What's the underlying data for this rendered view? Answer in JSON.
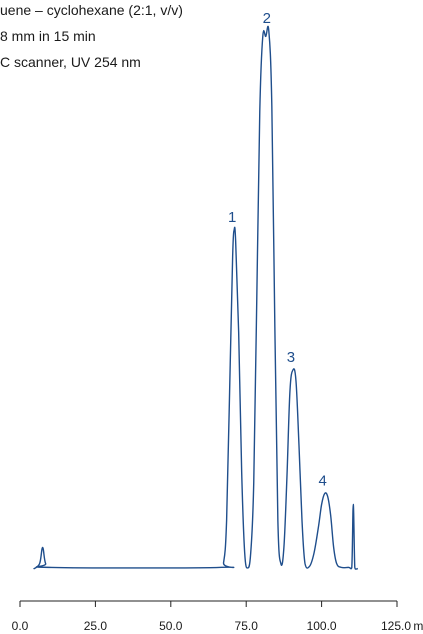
{
  "notes": [
    "uene – cyclohexane (2:1, v/v)",
    "8 mm in 15 min",
    "C scanner, UV 254 nm"
  ],
  "colors": {
    "trace": "#1f4e8c",
    "axis": "#222222",
    "text": "#1a1a1a"
  },
  "chart_data": {
    "type": "line",
    "title": "",
    "xlabel": "",
    "ylabel": "",
    "x_unit": "mm",
    "xlim": [
      0,
      125
    ],
    "x_ticks": [
      {
        "value": 0,
        "label": "0.0"
      },
      {
        "value": 25,
        "label": "25.0"
      },
      {
        "value": 50,
        "label": "50.0"
      },
      {
        "value": 75,
        "label": "75.0"
      },
      {
        "value": 100,
        "label": "100.0"
      },
      {
        "value": 125,
        "label": "125.0"
      }
    ],
    "peaks": [
      {
        "label": "1",
        "x": 71,
        "height": 0.63
      },
      {
        "label": "2",
        "x": 82.5,
        "height": 1.0
      },
      {
        "label": "3",
        "x": 90.5,
        "height": 0.37
      },
      {
        "label": "4",
        "x": 101,
        "height": 0.14
      }
    ],
    "series": [
      {
        "x": [
          4.5,
          6.5,
          7.5,
          8.5,
          10.5,
          66,
          67.5,
          68.5,
          69.5,
          70.5,
          71,
          71.5,
          72.5,
          73.5,
          74.5,
          75.5,
          76.5,
          77.5,
          78.5,
          79.5,
          80.5,
          81.5,
          82.5,
          83.5,
          84.5,
          85.5,
          86.5,
          87.5,
          88.5,
          89.5,
          90.5,
          91.5,
          92.5,
          93.5,
          94.5,
          96,
          97.5,
          99,
          100,
          101,
          102,
          103,
          104,
          105,
          106.5,
          109,
          110,
          110.5,
          111,
          111.5,
          112
        ],
        "y": [
          0,
          0.01,
          0.04,
          0.01,
          0.003,
          0.003,
          0.012,
          0.09,
          0.33,
          0.58,
          0.63,
          0.61,
          0.44,
          0.18,
          0.03,
          0.002,
          0.03,
          0.16,
          0.5,
          0.85,
          0.99,
          0.99,
          1.0,
          0.86,
          0.45,
          0.09,
          0.01,
          0.04,
          0.17,
          0.33,
          0.37,
          0.35,
          0.23,
          0.09,
          0.01,
          0.005,
          0.03,
          0.08,
          0.12,
          0.14,
          0.135,
          0.1,
          0.04,
          0.01,
          0.003,
          0.003,
          0.002,
          0.12,
          0.003,
          0.0,
          0.001
        ]
      }
    ]
  }
}
